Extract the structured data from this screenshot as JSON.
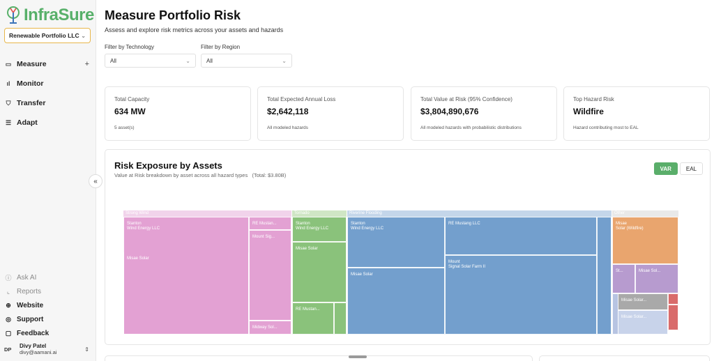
{
  "brand": {
    "name": "InfraSure",
    "color": "#58b06a"
  },
  "org_selector": {
    "value": "Renewable Portfolio LLC"
  },
  "nav": {
    "items": [
      {
        "label": "Measure",
        "icon": "folder-icon"
      },
      {
        "label": "Monitor",
        "icon": "bar-chart-icon"
      },
      {
        "label": "Transfer",
        "icon": "shield-icon"
      },
      {
        "label": "Adapt",
        "icon": "sliders-icon"
      }
    ]
  },
  "bottom_nav": {
    "items": [
      {
        "label": "Ask AI",
        "icon": "info-icon"
      },
      {
        "label": "Reports",
        "icon": "chart-icon"
      },
      {
        "label": "Website",
        "icon": "globe-icon"
      },
      {
        "label": "Support",
        "icon": "help-icon"
      },
      {
        "label": "Feedback",
        "icon": "message-icon"
      }
    ]
  },
  "user": {
    "initials": "DP",
    "name": "Divy Patel",
    "email": "divy@aamani.ai"
  },
  "page": {
    "title": "Measure Portfolio Risk",
    "subtitle": "Assess and explore risk metrics across your assets and hazards"
  },
  "filters": [
    {
      "label": "Filter by Technology",
      "value": "All"
    },
    {
      "label": "Filter by Region",
      "value": "All"
    }
  ],
  "cards": [
    {
      "title": "Total Capacity",
      "value": "634 MW",
      "note": "5 asset(s)"
    },
    {
      "title": "Total Expected Annual Loss",
      "value": "$2,642,118",
      "note": "All modeled hazards"
    },
    {
      "title": "Total Value at Risk (95% Confidence)",
      "value": "$3,804,890,676",
      "note": "All modeled hazards with probabilistic distributions"
    },
    {
      "title": "Top Hazard Risk",
      "value": "Wildfire",
      "note": "Hazard contributing most to EAL"
    }
  ],
  "panel": {
    "title": "Risk Exposure by Assets",
    "subtitle": "Value at Risk breakdown by asset across all hazard types",
    "total": "(Total: $3.80B)",
    "toggle": [
      {
        "label": "VAR",
        "active": true
      },
      {
        "label": "EAL",
        "active": false
      }
    ]
  },
  "treemap": {
    "groups": [
      {
        "label": "Strong Wind",
        "color": "#e3a1d3",
        "header_color": "#f1d3eb",
        "cells": [
          {
            "line1": "Stanton",
            "line2": "Wind Energy LLC"
          },
          {
            "line1": "RE Mustan...",
            "line2": ""
          },
          {
            "line1": "Mount Sig...",
            "line2": ""
          },
          {
            "line1": "Misae Solar",
            "line2": ""
          },
          {
            "line1": "Midway Sol...",
            "line2": ""
          }
        ]
      },
      {
        "label": "Tornado",
        "color": "#8ac27b",
        "header_color": "#cfe6c5",
        "cells": [
          {
            "line1": "Stanton",
            "line2": "Wind Energy LLC"
          },
          {
            "line1": "Misae Solar",
            "line2": ""
          },
          {
            "line1": "RE Mustan...",
            "line2": ""
          },
          {
            "line1": "",
            "line2": ""
          }
        ]
      },
      {
        "label": "Riverine Flooding",
        "color": "#739fcd",
        "header_color": "#c4d6ea",
        "cells": [
          {
            "line1": "Stanton",
            "line2": "Wind Energy LLC"
          },
          {
            "line1": "RE Mustang LLC",
            "line2": ""
          },
          {
            "line1": "Misae Solar",
            "line2": ""
          },
          {
            "line1": "Mount",
            "line2": "Signal Solar Farm II"
          },
          {
            "line1": "",
            "line2": ""
          }
        ]
      },
      {
        "label": "Other",
        "color": "#e9a56e",
        "header_color": "#e9e9e9",
        "cells": [
          {
            "line1": "Misae",
            "line2": "Solar (Wildfire)"
          },
          {
            "line1": "St...",
            "line2": ""
          },
          {
            "line1": "Misae Sol...",
            "line2": ""
          },
          {
            "line1": "Misae Solar...",
            "line2": ""
          },
          {
            "line1": "Misae Solar...",
            "line2": ""
          }
        ]
      }
    ]
  }
}
